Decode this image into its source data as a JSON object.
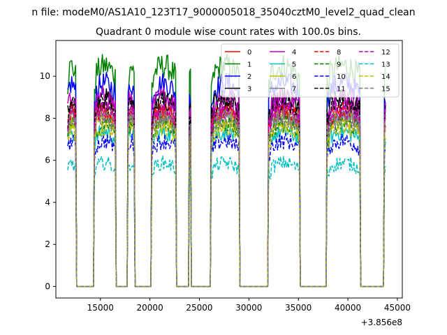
{
  "chart_data": {
    "type": "line",
    "suptitle": "n file: modeM0/AS1A10_123T17_9000005018_35040cztM0_level2_quad_clean",
    "title": "Quadrant 0 module wise count rates with 100.0s bins.",
    "xlabel": "",
    "ylabel": "",
    "x_offset_label": "+3.856e8",
    "xlim": [
      10500,
      45500
    ],
    "ylim": [
      -0.55,
      11.7
    ],
    "x_ticks": [
      15000,
      20000,
      25000,
      30000,
      35000,
      40000,
      45000
    ],
    "x_tick_labels": [
      "15000",
      "20000",
      "25000",
      "30000",
      "35000",
      "40000",
      "45000"
    ],
    "y_ticks": [
      0,
      2,
      4,
      6,
      8,
      10
    ],
    "y_tick_labels": [
      "0",
      "2",
      "4",
      "6",
      "8",
      "10"
    ],
    "grid": false,
    "legend_position": "top-right",
    "legend_columns": 4,
    "bin_size": 100,
    "segments": [
      [
        11700,
        12500
      ],
      [
        14400,
        16500
      ],
      [
        17800,
        18400
      ],
      [
        20200,
        22600
      ],
      [
        24000,
        24100
      ],
      [
        26200,
        29000
      ],
      [
        32000,
        35100
      ],
      [
        37900,
        41200
      ],
      [
        43700,
        43800
      ]
    ],
    "series": [
      {
        "name": "0",
        "color": "#ff0000",
        "dash": "solid",
        "level": 8.0
      },
      {
        "name": "1",
        "color": "#008000",
        "dash": "solid",
        "level": 10.0
      },
      {
        "name": "2",
        "color": "#0000ff",
        "dash": "solid",
        "level": 9.2
      },
      {
        "name": "3",
        "color": "#000000",
        "dash": "solid",
        "level": 8.5
      },
      {
        "name": "4",
        "color": "#bf00bf",
        "dash": "solid",
        "level": 8.6
      },
      {
        "name": "5",
        "color": "#00bfbf",
        "dash": "solid",
        "level": 7.0
      },
      {
        "name": "6",
        "color": "#bfbf00",
        "dash": "solid",
        "level": 7.6
      },
      {
        "name": "7",
        "color": "#808080",
        "dash": "solid",
        "level": 7.8
      },
      {
        "name": "8",
        "color": "#ff0000",
        "dash": "dashed",
        "level": 7.9
      },
      {
        "name": "9",
        "color": "#008000",
        "dash": "dashed",
        "level": 7.4
      },
      {
        "name": "10",
        "color": "#0000ff",
        "dash": "dashed",
        "level": 6.6
      },
      {
        "name": "11",
        "color": "#000000",
        "dash": "dashed",
        "level": 8.3
      },
      {
        "name": "12",
        "color": "#bf00bf",
        "dash": "dashed",
        "level": 8.0
      },
      {
        "name": "13",
        "color": "#00bfbf",
        "dash": "dashed",
        "level": 5.6
      },
      {
        "name": "14",
        "color": "#bfbf00",
        "dash": "dashed",
        "level": 7.2
      },
      {
        "name": "15",
        "color": "#808080",
        "dash": "dashed",
        "level": 7.6
      }
    ]
  }
}
